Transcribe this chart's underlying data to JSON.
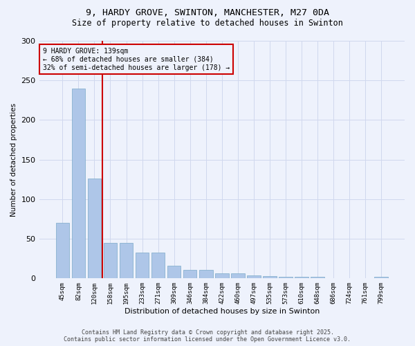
{
  "title_line1": "9, HARDY GROVE, SWINTON, MANCHESTER, M27 0DA",
  "title_line2": "Size of property relative to detached houses in Swinton",
  "xlabel": "Distribution of detached houses by size in Swinton",
  "ylabel": "Number of detached properties",
  "categories": [
    "45sqm",
    "82sqm",
    "120sqm",
    "158sqm",
    "195sqm",
    "233sqm",
    "271sqm",
    "309sqm",
    "346sqm",
    "384sqm",
    "422sqm",
    "460sqm",
    "497sqm",
    "535sqm",
    "573sqm",
    "610sqm",
    "648sqm",
    "686sqm",
    "724sqm",
    "761sqm",
    "799sqm"
  ],
  "values": [
    70,
    240,
    126,
    45,
    45,
    33,
    33,
    16,
    11,
    11,
    6,
    6,
    4,
    3,
    2,
    2,
    2,
    0,
    0,
    0,
    2
  ],
  "bar_color": "#aec6e8",
  "bar_edge_color": "#7aaac8",
  "grid_color": "#d0d8ee",
  "background_color": "#eef2fc",
  "vline_x": 2.5,
  "vline_color": "#cc0000",
  "annotation_text": "9 HARDY GROVE: 139sqm\n← 68% of detached houses are smaller (384)\n32% of semi-detached houses are larger (178) →",
  "annotation_box_color": "#cc0000",
  "ylim": [
    0,
    300
  ],
  "yticks": [
    0,
    50,
    100,
    150,
    200,
    250,
    300
  ],
  "footer_line1": "Contains HM Land Registry data © Crown copyright and database right 2025.",
  "footer_line2": "Contains public sector information licensed under the Open Government Licence v3.0."
}
